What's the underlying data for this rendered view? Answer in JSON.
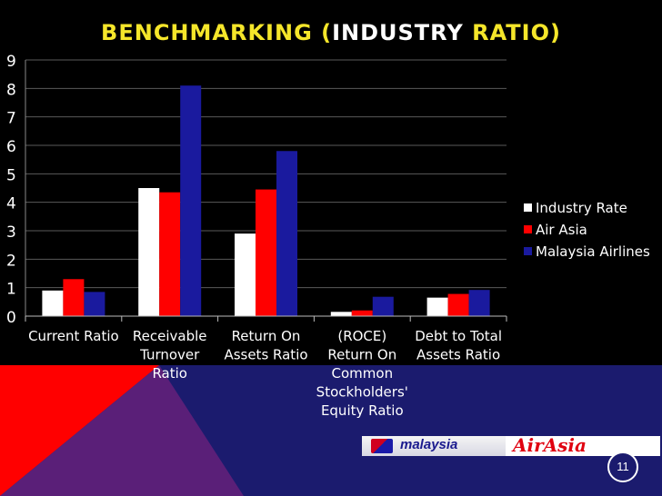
{
  "slide": {
    "title_part1": "BENCHMARKING (",
    "title_part2": "INDUSTRY",
    "title_part3": " RATIO)",
    "page_number": "11",
    "logos": {
      "mh": "malaysia",
      "aa": "AirAsia"
    },
    "colors": {
      "title_accent": "#f5e62a",
      "title_main": "#ffffff",
      "background": "#000000",
      "band_navy": "#1b1b6e",
      "band_red": "#ff0000",
      "band_purple": "#5a1f78"
    }
  },
  "chart_data": {
    "type": "bar",
    "title": "",
    "xlabel": "",
    "ylabel": "",
    "ylim": [
      0,
      9
    ],
    "yticks": [
      "0",
      "1",
      "2",
      "3",
      "4",
      "5",
      "6",
      "7",
      "8",
      "9"
    ],
    "grid": true,
    "legend_position": "right",
    "categories": [
      [
        "Current Ratio"
      ],
      [
        "Receivable",
        "Turnover",
        "Ratio"
      ],
      [
        "Return On",
        "Assets Ratio"
      ],
      [
        "(ROCE)",
        "Return On",
        "Common",
        "Stockholders'",
        "Equity Ratio"
      ],
      [
        "Debt to Total",
        "Assets Ratio"
      ]
    ],
    "series": [
      {
        "name": "Industry Rate",
        "color": "#ffffff",
        "values": [
          0.9,
          4.5,
          2.9,
          0.15,
          0.65
        ]
      },
      {
        "name": "Air Asia",
        "color": "#ff0000",
        "values": [
          1.3,
          4.35,
          4.45,
          0.2,
          0.78
        ]
      },
      {
        "name": "Malaysia Airlines",
        "color": "#1a1a9e",
        "values": [
          0.85,
          8.1,
          5.8,
          0.68,
          0.92
        ]
      }
    ]
  }
}
